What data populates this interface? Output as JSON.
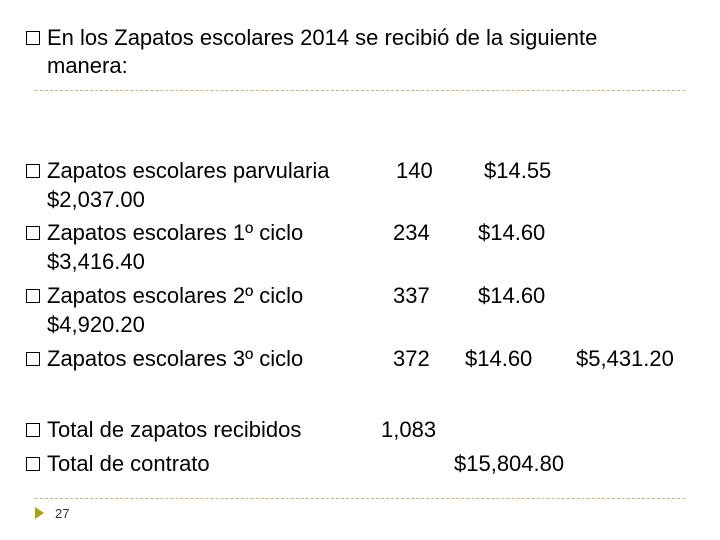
{
  "title": {
    "line1": "En los Zapatos escolares 2014 se recibió de la siguiente",
    "line2": "manera:"
  },
  "rows": [
    {
      "label": "Zapatos escolares parvularia",
      "qty": "140",
      "price": "$14.55",
      "total": "$2,037.00"
    },
    {
      "label": "Zapatos escolares 1º ciclo",
      "qty": "234",
      "price": "$14.60",
      "total": "$3,416.40"
    },
    {
      "label": "Zapatos escolares 2º ciclo",
      "qty": "337",
      "price": "$14.60",
      "total": "$4,920.20"
    },
    {
      "label": "Zapatos escolares 3º ciclo",
      "qty": "372",
      "price": "$14.60",
      "total": "$5,431.20"
    }
  ],
  "summary": {
    "received_label": "Total de zapatos recibidos",
    "received_value": "1,083",
    "contract_label": "Total de contrato",
    "contract_value": "$15,804.80"
  },
  "footer": {
    "page_number": "27",
    "marker_icon": "triangle-right-icon"
  },
  "colors": {
    "rule": "#c8b678",
    "marker": "#a4a414"
  }
}
